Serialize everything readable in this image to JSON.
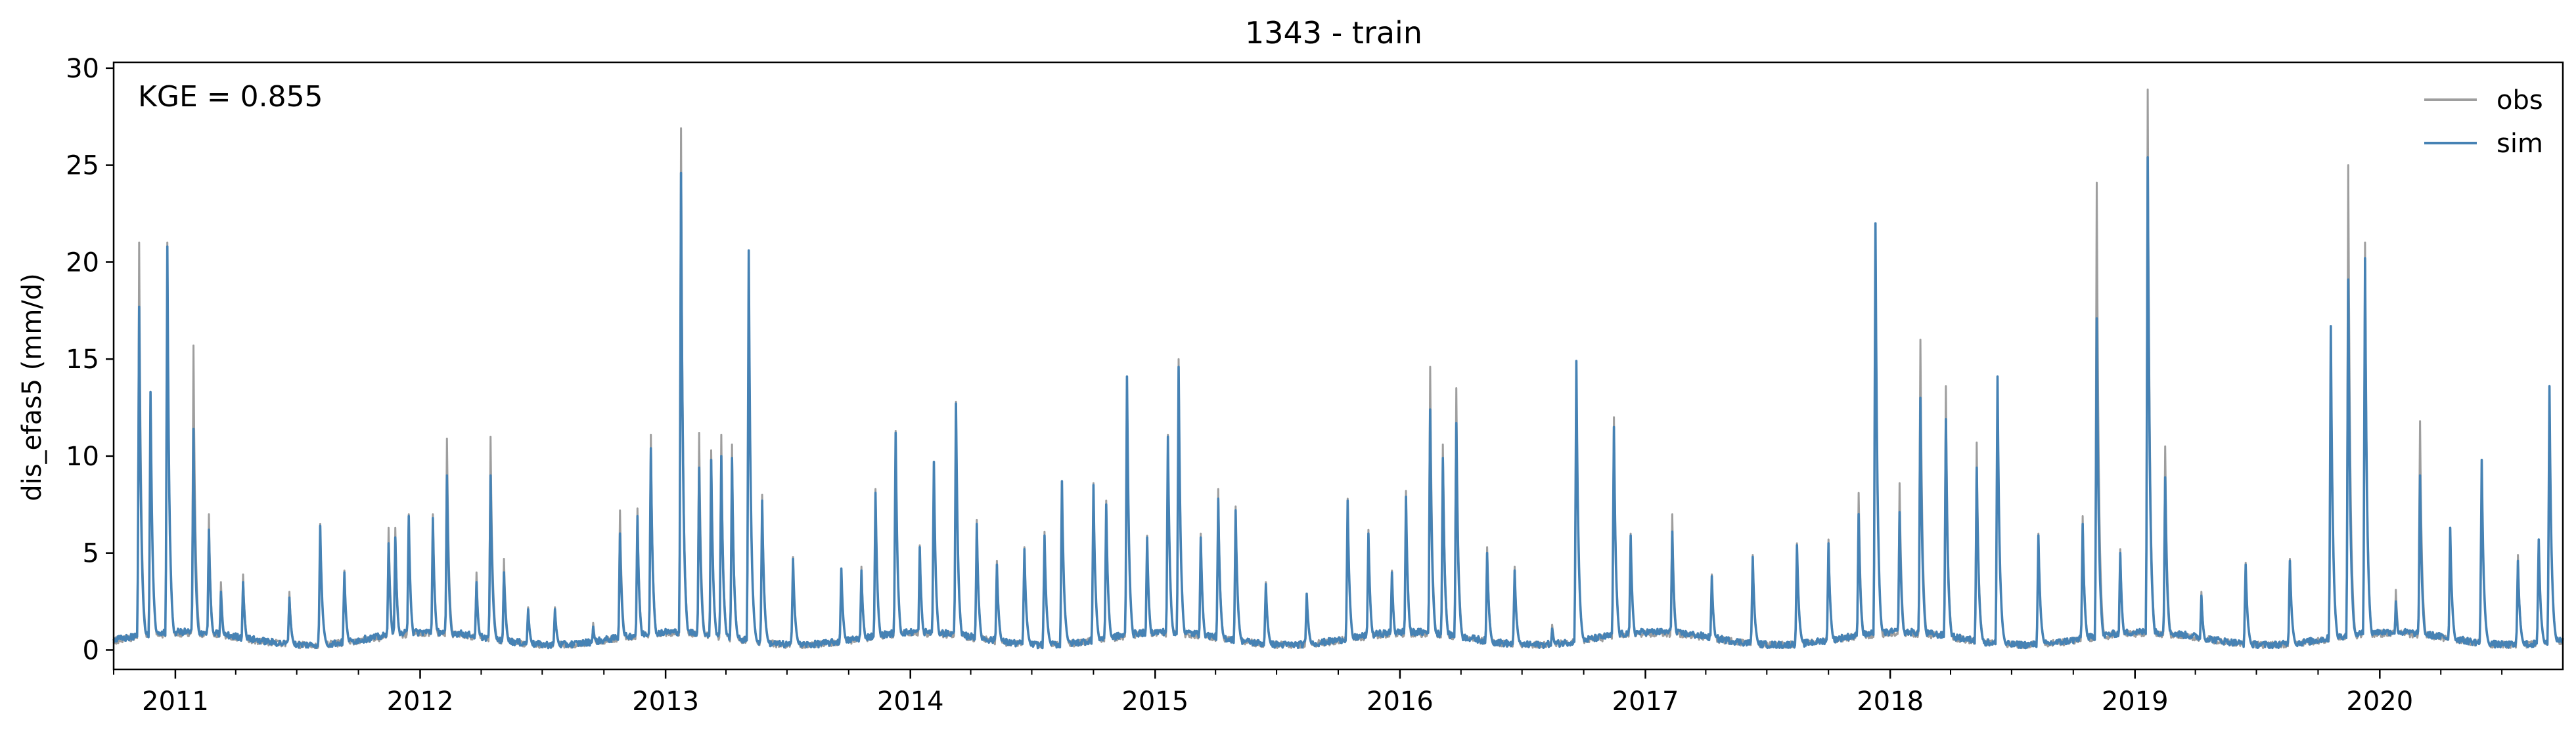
{
  "chart_data": {
    "type": "line",
    "title": "1343 - train",
    "xlabel": "",
    "ylabel": "dis_efas5 (mm/d)",
    "annotation": "KGE = 0.855",
    "xlim": [
      "2010-10-01",
      "2020-09-30"
    ],
    "ylim": [
      -1,
      30.3
    ],
    "y_ticks": [
      0,
      5,
      10,
      15,
      20,
      25,
      30
    ],
    "x_ticks": [
      {
        "label": "2011",
        "date": "2011-01-01"
      },
      {
        "label": "2012",
        "date": "2012-01-01"
      },
      {
        "label": "2013",
        "date": "2013-01-01"
      },
      {
        "label": "2014",
        "date": "2014-01-01"
      },
      {
        "label": "2015",
        "date": "2015-01-01"
      },
      {
        "label": "2016",
        "date": "2016-01-01"
      },
      {
        "label": "2017",
        "date": "2017-01-01"
      },
      {
        "label": "2018",
        "date": "2018-01-01"
      },
      {
        "label": "2019",
        "date": "2019-01-01"
      },
      {
        "label": "2020",
        "date": "2020-01-01"
      }
    ],
    "grid": false,
    "legend_position": "top-right",
    "series": [
      {
        "name": "obs",
        "color": "#9e9e9e",
        "peaks": [
          [
            "2010-11-08",
            21.0
          ],
          [
            "2010-11-25",
            13.3
          ],
          [
            "2010-12-20",
            21.0
          ],
          [
            "2011-01-28",
            15.7
          ],
          [
            "2011-02-20",
            7.0
          ],
          [
            "2011-03-10",
            3.5
          ],
          [
            "2011-04-12",
            3.9
          ],
          [
            "2011-06-20",
            3.0
          ],
          [
            "2011-08-05",
            6.5
          ],
          [
            "2011-09-10",
            4.1
          ],
          [
            "2011-11-15",
            6.3
          ],
          [
            "2011-11-25",
            6.3
          ],
          [
            "2011-12-15",
            7.0
          ],
          [
            "2012-01-20",
            7.0
          ],
          [
            "2012-02-10",
            10.9
          ],
          [
            "2012-03-25",
            4.0
          ],
          [
            "2012-04-15",
            11.0
          ],
          [
            "2012-05-05",
            4.7
          ],
          [
            "2012-06-10",
            2.2
          ],
          [
            "2012-07-20",
            2.2
          ],
          [
            "2012-09-15",
            1.4
          ],
          [
            "2012-10-25",
            7.2
          ],
          [
            "2012-11-20",
            7.3
          ],
          [
            "2012-12-10",
            11.1
          ],
          [
            "2013-01-24",
            26.9
          ],
          [
            "2013-02-20",
            11.2
          ],
          [
            "2013-03-10",
            10.3
          ],
          [
            "2013-03-25",
            11.1
          ],
          [
            "2013-04-10",
            10.6
          ],
          [
            "2013-05-05",
            20.5
          ],
          [
            "2013-05-25",
            8.0
          ],
          [
            "2013-07-10",
            4.8
          ],
          [
            "2013-09-20",
            4.1
          ],
          [
            "2013-10-20",
            4.3
          ],
          [
            "2013-11-10",
            8.3
          ],
          [
            "2013-12-10",
            11.3
          ],
          [
            "2014-01-15",
            5.4
          ],
          [
            "2014-02-05",
            9.6
          ],
          [
            "2014-03-10",
            12.8
          ],
          [
            "2014-04-10",
            6.7
          ],
          [
            "2014-05-10",
            4.6
          ],
          [
            "2014-06-20",
            5.3
          ],
          [
            "2014-07-20",
            6.1
          ],
          [
            "2014-08-15",
            8.6
          ],
          [
            "2014-10-01",
            8.6
          ],
          [
            "2014-10-20",
            7.7
          ],
          [
            "2014-11-20",
            14.0
          ],
          [
            "2014-12-20",
            5.9
          ],
          [
            "2015-01-20",
            11.1
          ],
          [
            "2015-02-05",
            15.0
          ],
          [
            "2015-03-10",
            6.0
          ],
          [
            "2015-04-05",
            8.3
          ],
          [
            "2015-05-01",
            7.4
          ],
          [
            "2015-06-15",
            3.5
          ],
          [
            "2015-08-15",
            2.9
          ],
          [
            "2015-10-15",
            7.8
          ],
          [
            "2015-11-15",
            6.2
          ],
          [
            "2015-12-20",
            4.1
          ],
          [
            "2016-01-10",
            8.2
          ],
          [
            "2016-02-15",
            14.6
          ],
          [
            "2016-03-05",
            10.6
          ],
          [
            "2016-03-25",
            13.5
          ],
          [
            "2016-05-10",
            5.3
          ],
          [
            "2016-06-20",
            4.3
          ],
          [
            "2016-08-15",
            1.3
          ],
          [
            "2016-09-20",
            14.9
          ],
          [
            "2016-11-15",
            12.0
          ],
          [
            "2016-12-10",
            6.0
          ],
          [
            "2017-02-10",
            7.0
          ],
          [
            "2017-04-10",
            3.9
          ],
          [
            "2017-06-10",
            4.9
          ],
          [
            "2017-08-15",
            5.5
          ],
          [
            "2017-10-01",
            5.7
          ],
          [
            "2017-11-15",
            8.1
          ],
          [
            "2017-12-10",
            21.9
          ],
          [
            "2018-01-15",
            8.6
          ],
          [
            "2018-02-15",
            16.0
          ],
          [
            "2018-03-25",
            13.6
          ],
          [
            "2018-05-10",
            10.7
          ],
          [
            "2018-06-10",
            14.0
          ],
          [
            "2018-08-10",
            6.0
          ],
          [
            "2018-10-15",
            6.9
          ],
          [
            "2018-11-05",
            24.1
          ],
          [
            "2018-12-10",
            5.2
          ],
          [
            "2019-01-20",
            28.9
          ],
          [
            "2019-02-15",
            10.5
          ],
          [
            "2019-04-10",
            3.0
          ],
          [
            "2019-06-15",
            4.5
          ],
          [
            "2019-08-20",
            4.7
          ],
          [
            "2019-10-20",
            16.7
          ],
          [
            "2019-11-15",
            25.0
          ],
          [
            "2019-12-10",
            21.0
          ],
          [
            "2020-01-25",
            3.1
          ],
          [
            "2020-03-01",
            11.8
          ],
          [
            "2020-04-15",
            6.3
          ],
          [
            "2020-06-01",
            9.8
          ],
          [
            "2020-07-25",
            4.9
          ],
          [
            "2020-08-25",
            5.7
          ],
          [
            "2020-09-10",
            13.6
          ]
        ]
      },
      {
        "name": "sim",
        "color": "#4682b4",
        "peaks": [
          [
            "2010-11-08",
            17.7
          ],
          [
            "2010-11-25",
            13.3
          ],
          [
            "2010-12-20",
            20.8
          ],
          [
            "2011-01-28",
            11.4
          ],
          [
            "2011-02-20",
            6.2
          ],
          [
            "2011-03-10",
            3.0
          ],
          [
            "2011-04-12",
            3.5
          ],
          [
            "2011-06-20",
            2.7
          ],
          [
            "2011-08-05",
            6.4
          ],
          [
            "2011-09-10",
            4.0
          ],
          [
            "2011-11-15",
            5.5
          ],
          [
            "2011-11-25",
            5.8
          ],
          [
            "2011-12-15",
            6.9
          ],
          [
            "2012-01-20",
            6.8
          ],
          [
            "2012-02-10",
            9.0
          ],
          [
            "2012-03-25",
            3.5
          ],
          [
            "2012-04-15",
            9.0
          ],
          [
            "2012-05-05",
            4.0
          ],
          [
            "2012-06-10",
            2.1
          ],
          [
            "2012-07-20",
            2.1
          ],
          [
            "2012-09-15",
            1.2
          ],
          [
            "2012-10-25",
            6.0
          ],
          [
            "2012-11-20",
            6.9
          ],
          [
            "2012-12-10",
            10.4
          ],
          [
            "2013-01-24",
            24.6
          ],
          [
            "2013-02-20",
            9.4
          ],
          [
            "2013-03-10",
            9.8
          ],
          [
            "2013-03-25",
            10.0
          ],
          [
            "2013-04-10",
            9.9
          ],
          [
            "2013-05-05",
            20.6
          ],
          [
            "2013-05-25",
            7.7
          ],
          [
            "2013-07-10",
            4.7
          ],
          [
            "2013-09-20",
            4.2
          ],
          [
            "2013-10-20",
            4.1
          ],
          [
            "2013-11-10",
            8.1
          ],
          [
            "2013-12-10",
            11.2
          ],
          [
            "2014-01-15",
            5.3
          ],
          [
            "2014-02-05",
            9.7
          ],
          [
            "2014-03-10",
            12.7
          ],
          [
            "2014-04-10",
            6.5
          ],
          [
            "2014-05-10",
            4.4
          ],
          [
            "2014-06-20",
            5.2
          ],
          [
            "2014-07-20",
            5.9
          ],
          [
            "2014-08-15",
            8.7
          ],
          [
            "2014-10-01",
            8.5
          ],
          [
            "2014-10-20",
            7.5
          ],
          [
            "2014-11-20",
            14.1
          ],
          [
            "2014-12-20",
            5.8
          ],
          [
            "2015-01-20",
            11.0
          ],
          [
            "2015-02-05",
            14.6
          ],
          [
            "2015-03-10",
            5.8
          ],
          [
            "2015-04-05",
            7.8
          ],
          [
            "2015-05-01",
            7.2
          ],
          [
            "2015-06-15",
            3.4
          ],
          [
            "2015-08-15",
            2.9
          ],
          [
            "2015-10-15",
            7.7
          ],
          [
            "2015-11-15",
            6.0
          ],
          [
            "2015-12-20",
            4.0
          ],
          [
            "2016-01-10",
            7.9
          ],
          [
            "2016-02-15",
            12.4
          ],
          [
            "2016-03-05",
            9.9
          ],
          [
            "2016-03-25",
            11.7
          ],
          [
            "2016-05-10",
            5.0
          ],
          [
            "2016-06-20",
            4.1
          ],
          [
            "2016-08-15",
            1.1
          ],
          [
            "2016-09-20",
            14.9
          ],
          [
            "2016-11-15",
            11.5
          ],
          [
            "2016-12-10",
            5.9
          ],
          [
            "2017-02-10",
            6.1
          ],
          [
            "2017-04-10",
            3.8
          ],
          [
            "2017-06-10",
            4.8
          ],
          [
            "2017-08-15",
            5.4
          ],
          [
            "2017-10-01",
            5.5
          ],
          [
            "2017-11-15",
            7.0
          ],
          [
            "2017-12-10",
            22.0
          ],
          [
            "2018-01-15",
            7.1
          ],
          [
            "2018-02-15",
            13.0
          ],
          [
            "2018-03-25",
            11.9
          ],
          [
            "2018-05-10",
            9.4
          ],
          [
            "2018-06-10",
            14.1
          ],
          [
            "2018-08-10",
            5.9
          ],
          [
            "2018-10-15",
            6.5
          ],
          [
            "2018-11-05",
            17.1
          ],
          [
            "2018-12-10",
            5.0
          ],
          [
            "2019-01-20",
            25.4
          ],
          [
            "2019-02-15",
            8.9
          ],
          [
            "2019-04-10",
            2.8
          ],
          [
            "2019-06-15",
            4.4
          ],
          [
            "2019-08-20",
            4.6
          ],
          [
            "2019-10-20",
            16.7
          ],
          [
            "2019-11-15",
            19.1
          ],
          [
            "2019-12-10",
            20.2
          ],
          [
            "2020-01-25",
            2.5
          ],
          [
            "2020-03-01",
            9.0
          ],
          [
            "2020-04-15",
            6.3
          ],
          [
            "2020-06-01",
            9.8
          ],
          [
            "2020-07-25",
            4.6
          ],
          [
            "2020-08-25",
            5.7
          ],
          [
            "2020-09-10",
            13.6
          ]
        ]
      }
    ]
  }
}
